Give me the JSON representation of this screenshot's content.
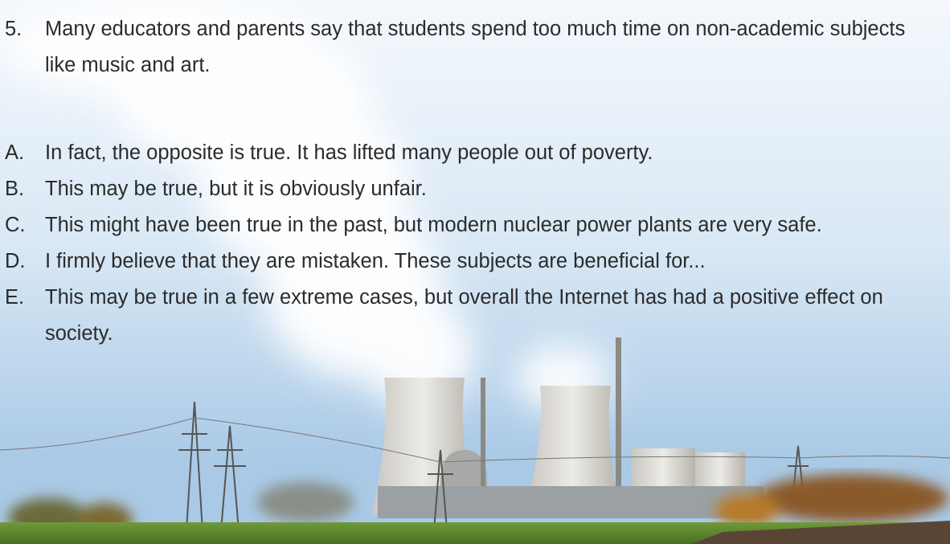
{
  "question": {
    "number": "5.",
    "text": "Many educators and parents say that students spend too much time on non-academic subjects like music and art."
  },
  "options": [
    {
      "letter": "A.",
      "text": "In fact, the opposite is true. It has lifted many people out of poverty."
    },
    {
      "letter": "B.",
      "text": "This may be true, but it is obviously unfair."
    },
    {
      "letter": "C.",
      "text": "This might have been true in the past, but modern nuclear power plants are very safe."
    },
    {
      "letter": "D.",
      "text": "I firmly believe that they are mistaken. These subjects are beneficial for..."
    },
    {
      "letter": "E.",
      "text": "This may be true in a few extreme cases, but overall the Internet has had a positive effect on society."
    }
  ]
}
